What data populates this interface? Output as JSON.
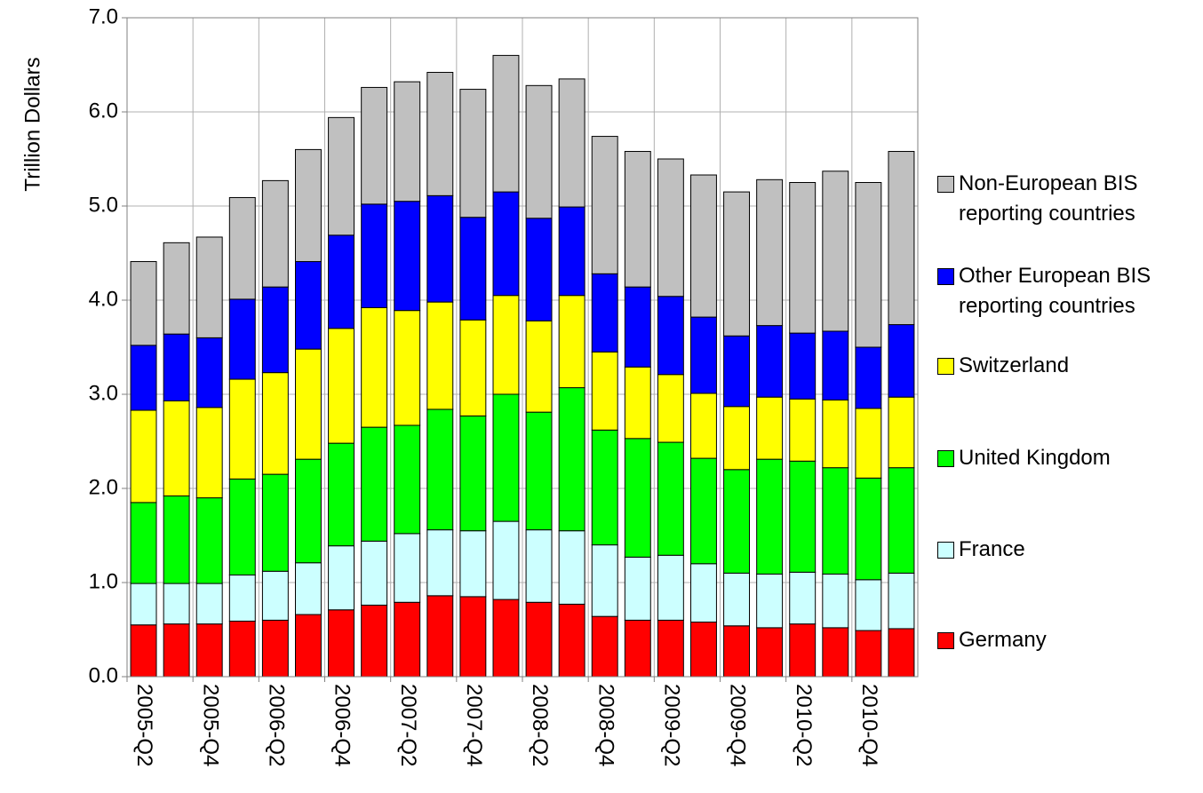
{
  "chart_data": {
    "type": "stacked-bar",
    "y_label": "Trillion Dollars",
    "categories": [
      "2005-Q2",
      null,
      "2005-Q4",
      null,
      "2006-Q2",
      null,
      "2006-Q4",
      null,
      "2007-Q2",
      null,
      "2007-Q4",
      null,
      "2008-Q2",
      null,
      "2008-Q4",
      null,
      "2009-Q2",
      null,
      "2009-Q4",
      null,
      "2010-Q2",
      null,
      "2010-Q4",
      null
    ],
    "series": [
      {
        "name": "Germany",
        "color": "#ff0000",
        "values": [
          0.55,
          0.56,
          0.56,
          0.59,
          0.6,
          0.66,
          0.71,
          0.76,
          0.79,
          0.86,
          0.85,
          0.82,
          0.79,
          0.77,
          0.64,
          0.6,
          0.6,
          0.58,
          0.54,
          0.52,
          0.56,
          0.52,
          0.49,
          0.51
        ]
      },
      {
        "name": "France",
        "color": "#ccffff",
        "values": [
          0.44,
          0.43,
          0.43,
          0.49,
          0.52,
          0.55,
          0.68,
          0.68,
          0.73,
          0.7,
          0.7,
          0.83,
          0.77,
          0.78,
          0.76,
          0.67,
          0.69,
          0.62,
          0.56,
          0.57,
          0.55,
          0.57,
          0.54,
          0.59
        ]
      },
      {
        "name": "United Kingdom",
        "color": "#00ff00",
        "values": [
          0.86,
          0.93,
          0.91,
          1.02,
          1.03,
          1.1,
          1.09,
          1.21,
          1.15,
          1.28,
          1.22,
          1.35,
          1.25,
          1.52,
          1.22,
          1.26,
          1.2,
          1.12,
          1.1,
          1.22,
          1.18,
          1.13,
          1.08,
          1.12
        ]
      },
      {
        "name": "Switzerland",
        "color": "#ffff00",
        "values": [
          0.98,
          1.01,
          0.96,
          1.06,
          1.08,
          1.17,
          1.22,
          1.27,
          1.22,
          1.14,
          1.02,
          1.05,
          0.97,
          0.98,
          0.83,
          0.76,
          0.72,
          0.69,
          0.67,
          0.66,
          0.66,
          0.72,
          0.74,
          0.75
        ]
      },
      {
        "name": "Other European BIS reporting countries",
        "color": "#0000ff",
        "values": [
          0.69,
          0.71,
          0.74,
          0.85,
          0.91,
          0.93,
          0.99,
          1.1,
          1.16,
          1.13,
          1.09,
          1.1,
          1.09,
          0.94,
          0.83,
          0.85,
          0.83,
          0.81,
          0.75,
          0.76,
          0.7,
          0.73,
          0.65,
          0.77
        ]
      },
      {
        "name": "Non-European BIS reporting countries",
        "color": "#c0c0c0",
        "values": [
          0.89,
          0.97,
          1.07,
          1.08,
          1.13,
          1.19,
          1.25,
          1.24,
          1.27,
          1.31,
          1.36,
          1.45,
          1.41,
          1.36,
          1.46,
          1.44,
          1.46,
          1.51,
          1.53,
          1.55,
          1.6,
          1.7,
          1.75,
          1.84
        ]
      }
    ],
    "ylim": [
      0,
      7
    ],
    "yticks": [
      {
        "value": 0,
        "label": "0.0"
      },
      {
        "value": 1,
        "label": "1.0"
      },
      {
        "value": 2,
        "label": "2.0"
      },
      {
        "value": 3,
        "label": "3.0"
      },
      {
        "value": 4,
        "label": "4.0"
      },
      {
        "value": 5,
        "label": "5.0"
      },
      {
        "value": 6,
        "label": "6.0"
      },
      {
        "value": 7,
        "label": "7.0"
      }
    ],
    "grid": true,
    "legend": "right"
  }
}
